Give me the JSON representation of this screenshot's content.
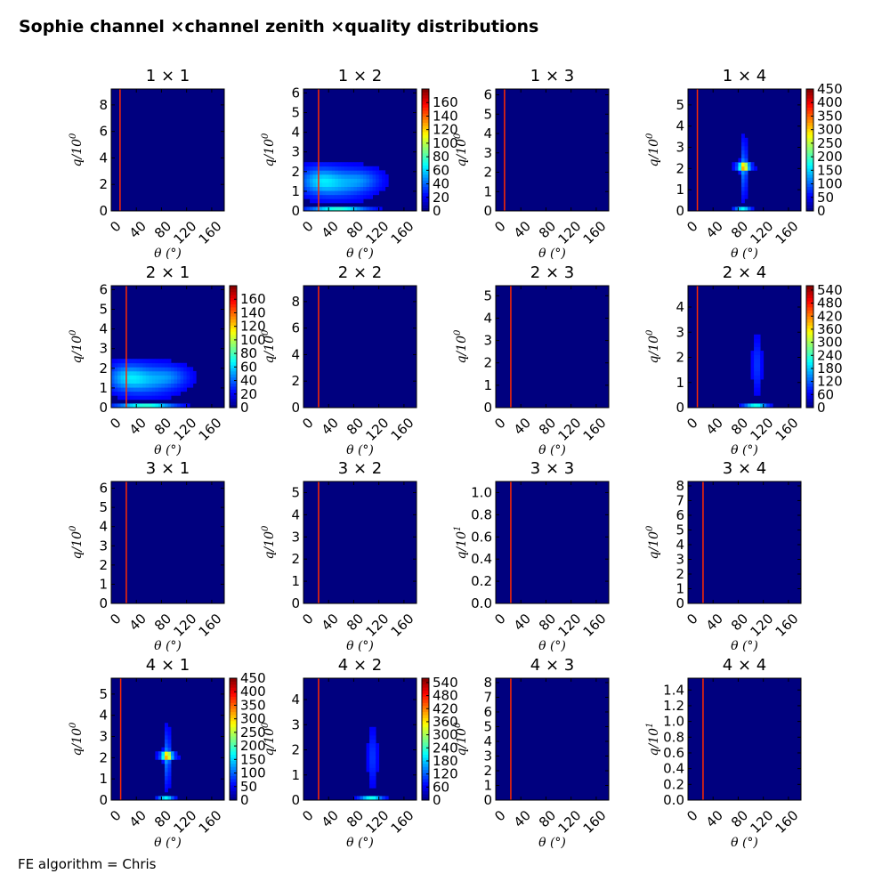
{
  "figure": {
    "title": "Sophie channel ×channel zenith ×quality distributions",
    "footer": "FE algorithm = Chris",
    "background_color": "#00007f",
    "marker_line_color": "#ff2a00"
  },
  "chart_data": [
    {
      "type": "heatmap",
      "title": "1 × 1",
      "xlabel": "θ (°)",
      "ylabel": "q/10^0",
      "xlim": [
        0,
        180
      ],
      "xticks": [
        0,
        40,
        80,
        120,
        160
      ],
      "ylim": [
        0,
        9.2
      ],
      "yticks": [
        "0",
        "2",
        "4",
        "6",
        "8"
      ],
      "marker_x": 14,
      "colorbar": null,
      "hotspots": []
    },
    {
      "type": "heatmap",
      "title": "1 × 2",
      "xlabel": "θ (°)",
      "ylabel": "q/10^0",
      "xlim": [
        0,
        180
      ],
      "xticks": [
        0,
        40,
        80,
        120,
        160
      ],
      "ylim": [
        0,
        6.2
      ],
      "yticks": [
        "0",
        "1",
        "2",
        "3",
        "4",
        "5",
        "6"
      ],
      "marker_x": 24,
      "colorbar": {
        "min": 0,
        "max": 180,
        "ticks": [
          "0",
          "20",
          "40",
          "60",
          "80",
          "100",
          "120",
          "140",
          "160"
        ]
      },
      "hotspots": [
        {
          "x": 25,
          "y": 1.55,
          "sx": 22,
          "sy": 0.45,
          "v": 35
        },
        {
          "x": 60,
          "y": 1.4,
          "sx": 30,
          "sy": 0.5,
          "v": 30
        },
        {
          "x": 95,
          "y": 1.6,
          "sx": 20,
          "sy": 0.35,
          "v": 18
        },
        {
          "x": 55,
          "y": 0.05,
          "sx": 30,
          "sy": 0.06,
          "v": 90
        }
      ]
    },
    {
      "type": "heatmap",
      "title": "1 × 3",
      "xlabel": "θ (°)",
      "ylabel": "q/10^0",
      "xlim": [
        0,
        180
      ],
      "xticks": [
        0,
        40,
        80,
        120,
        160
      ],
      "ylim": [
        0,
        6.3
      ],
      "yticks": [
        "0",
        "1",
        "2",
        "3",
        "4",
        "5",
        "6"
      ],
      "marker_x": 14,
      "colorbar": null,
      "hotspots": []
    },
    {
      "type": "heatmap",
      "title": "1 × 4",
      "xlabel": "θ (°)",
      "ylabel": "q/10^0",
      "xlim": [
        0,
        180
      ],
      "xticks": [
        0,
        40,
        80,
        120,
        160
      ],
      "ylim": [
        0,
        5.75
      ],
      "yticks": [
        "0",
        "1",
        "2",
        "3",
        "4",
        "5"
      ],
      "marker_x": 15,
      "colorbar": {
        "min": 0,
        "max": 450,
        "ticks": [
          "0",
          "50",
          "100",
          "150",
          "200",
          "250",
          "300",
          "350",
          "400",
          "450"
        ]
      },
      "hotspots": [
        {
          "x": 89,
          "y": 2.0,
          "sx": 3,
          "sy": 0.8,
          "v": 80
        },
        {
          "x": 89,
          "y": 2.1,
          "sx": 6,
          "sy": 0.12,
          "v": 280
        },
        {
          "x": 89,
          "y": 2.1,
          "sx": 14,
          "sy": 0.06,
          "v": 60
        },
        {
          "x": 87,
          "y": 0.05,
          "sx": 8,
          "sy": 0.05,
          "v": 200
        }
      ]
    },
    {
      "type": "heatmap",
      "title": "2 × 1",
      "xlabel": "θ (°)",
      "ylabel": "q/10^0",
      "xlim": [
        0,
        180
      ],
      "xticks": [
        0,
        40,
        80,
        120,
        160
      ],
      "ylim": [
        0,
        6.2
      ],
      "yticks": [
        "0",
        "1",
        "2",
        "3",
        "4",
        "5",
        "6"
      ],
      "marker_x": 24,
      "colorbar": {
        "min": 0,
        "max": 180,
        "ticks": [
          "0",
          "20",
          "40",
          "60",
          "80",
          "100",
          "120",
          "140",
          "160"
        ]
      },
      "hotspots": [
        {
          "x": 25,
          "y": 1.55,
          "sx": 22,
          "sy": 0.45,
          "v": 35
        },
        {
          "x": 60,
          "y": 1.4,
          "sx": 30,
          "sy": 0.5,
          "v": 30
        },
        {
          "x": 95,
          "y": 1.6,
          "sx": 20,
          "sy": 0.35,
          "v": 18
        },
        {
          "x": 55,
          "y": 0.05,
          "sx": 30,
          "sy": 0.06,
          "v": 90
        }
      ]
    },
    {
      "type": "heatmap",
      "title": "2 × 2",
      "xlabel": "θ (°)",
      "ylabel": "q/10^0",
      "xlim": [
        0,
        180
      ],
      "xticks": [
        0,
        40,
        80,
        120,
        160
      ],
      "ylim": [
        0,
        9.2
      ],
      "yticks": [
        "0",
        "2",
        "4",
        "6",
        "8"
      ],
      "marker_x": 24,
      "colorbar": null,
      "hotspots": []
    },
    {
      "type": "heatmap",
      "title": "2 × 3",
      "xlabel": "θ (°)",
      "ylabel": "q/10^0",
      "xlim": [
        0,
        180
      ],
      "xticks": [
        0,
        40,
        80,
        120,
        160
      ],
      "ylim": [
        0,
        5.45
      ],
      "yticks": [
        "0",
        "1",
        "2",
        "3",
        "4",
        "5"
      ],
      "marker_x": 24,
      "colorbar": null,
      "hotspots": []
    },
    {
      "type": "heatmap",
      "title": "2 × 4",
      "xlabel": "θ (°)",
      "ylabel": "q/10^0",
      "xlim": [
        0,
        180
      ],
      "xticks": [
        0,
        40,
        80,
        120,
        160
      ],
      "ylim": [
        0,
        4.85
      ],
      "yticks": [
        "0",
        "1",
        "2",
        "3",
        "4"
      ],
      "marker_x": 15,
      "colorbar": {
        "min": 0,
        "max": 560,
        "ticks": [
          "0",
          "60",
          "120",
          "180",
          "240",
          "300",
          "360",
          "420",
          "480",
          "540"
        ]
      },
      "hotspots": [
        {
          "x": 110,
          "y": 1.7,
          "sx": 5,
          "sy": 0.7,
          "v": 50
        },
        {
          "x": 108,
          "y": 0.03,
          "sx": 12,
          "sy": 0.05,
          "v": 300
        }
      ]
    },
    {
      "type": "heatmap",
      "title": "3 × 1",
      "xlabel": "θ (°)",
      "ylabel": "q/10^0",
      "xlim": [
        0,
        180
      ],
      "xticks": [
        0,
        40,
        80,
        120,
        160
      ],
      "ylim": [
        0,
        6.35
      ],
      "yticks": [
        "0",
        "1",
        "2",
        "3",
        "4",
        "5",
        "6"
      ],
      "marker_x": 24,
      "colorbar": null,
      "hotspots": []
    },
    {
      "type": "heatmap",
      "title": "3 × 2",
      "xlabel": "θ (°)",
      "ylabel": "q/10^0",
      "xlim": [
        0,
        180
      ],
      "xticks": [
        0,
        40,
        80,
        120,
        160
      ],
      "ylim": [
        0,
        5.5
      ],
      "yticks": [
        "0",
        "1",
        "2",
        "3",
        "4",
        "5"
      ],
      "marker_x": 24,
      "colorbar": null,
      "hotspots": []
    },
    {
      "type": "heatmap",
      "title": "3 × 3",
      "xlabel": "θ (°)",
      "ylabel": "q/10^1",
      "xlim": [
        0,
        180
      ],
      "xticks": [
        0,
        40,
        80,
        120,
        160
      ],
      "ylim": [
        0,
        1.1
      ],
      "yticks": [
        "0.0",
        "0.2",
        "0.4",
        "0.6",
        "0.8",
        "1.0"
      ],
      "marker_x": 24,
      "colorbar": null,
      "hotspots": []
    },
    {
      "type": "heatmap",
      "title": "3 × 4",
      "xlabel": "θ (°)",
      "ylabel": "q/10^0",
      "xlim": [
        0,
        180
      ],
      "xticks": [
        0,
        40,
        80,
        120,
        160
      ],
      "ylim": [
        0,
        8.3
      ],
      "yticks": [
        "0",
        "1",
        "2",
        "3",
        "4",
        "5",
        "6",
        "7",
        "8"
      ],
      "marker_x": 24,
      "colorbar": null,
      "hotspots": []
    },
    {
      "type": "heatmap",
      "title": "4 × 1",
      "xlabel": "θ (°)",
      "ylabel": "q/10^0",
      "xlim": [
        0,
        180
      ],
      "xticks": [
        0,
        40,
        80,
        120,
        160
      ],
      "ylim": [
        0,
        5.75
      ],
      "yticks": [
        "0",
        "1",
        "2",
        "3",
        "4",
        "5"
      ],
      "marker_x": 15,
      "colorbar": {
        "min": 0,
        "max": 450,
        "ticks": [
          "0",
          "50",
          "100",
          "150",
          "200",
          "250",
          "300",
          "350",
          "400",
          "450"
        ]
      },
      "hotspots": [
        {
          "x": 89,
          "y": 2.0,
          "sx": 3,
          "sy": 0.8,
          "v": 80
        },
        {
          "x": 89,
          "y": 2.1,
          "sx": 6,
          "sy": 0.12,
          "v": 280
        },
        {
          "x": 89,
          "y": 2.1,
          "sx": 14,
          "sy": 0.06,
          "v": 60
        },
        {
          "x": 87,
          "y": 0.05,
          "sx": 8,
          "sy": 0.05,
          "v": 200
        }
      ]
    },
    {
      "type": "heatmap",
      "title": "4 × 2",
      "xlabel": "θ (°)",
      "ylabel": "q/10^0",
      "xlim": [
        0,
        180
      ],
      "xticks": [
        0,
        40,
        80,
        120,
        160
      ],
      "ylim": [
        0,
        4.85
      ],
      "yticks": [
        "0",
        "1",
        "2",
        "3",
        "4"
      ],
      "marker_x": 24,
      "colorbar": {
        "min": 0,
        "max": 560,
        "ticks": [
          "0",
          "60",
          "120",
          "180",
          "240",
          "300",
          "360",
          "420",
          "480",
          "540"
        ]
      },
      "hotspots": [
        {
          "x": 110,
          "y": 1.7,
          "sx": 5,
          "sy": 0.7,
          "v": 50
        },
        {
          "x": 108,
          "y": 0.03,
          "sx": 12,
          "sy": 0.05,
          "v": 300
        }
      ]
    },
    {
      "type": "heatmap",
      "title": "4 × 3",
      "xlabel": "θ (°)",
      "ylabel": "q/10^0",
      "xlim": [
        0,
        180
      ],
      "xticks": [
        0,
        40,
        80,
        120,
        160
      ],
      "ylim": [
        0,
        8.3
      ],
      "yticks": [
        "0",
        "1",
        "2",
        "3",
        "4",
        "5",
        "6",
        "7",
        "8"
      ],
      "marker_x": 24,
      "colorbar": null,
      "hotspots": []
    },
    {
      "type": "heatmap",
      "title": "4 × 4",
      "xlabel": "θ (°)",
      "ylabel": "q/10^1",
      "xlim": [
        0,
        180
      ],
      "xticks": [
        0,
        40,
        80,
        120,
        160
      ],
      "ylim": [
        0,
        1.55
      ],
      "yticks": [
        "0.0",
        "0.2",
        "0.4",
        "0.6",
        "0.8",
        "1.0",
        "1.2",
        "1.4"
      ],
      "marker_x": 24,
      "colorbar": null,
      "hotspots": []
    }
  ]
}
